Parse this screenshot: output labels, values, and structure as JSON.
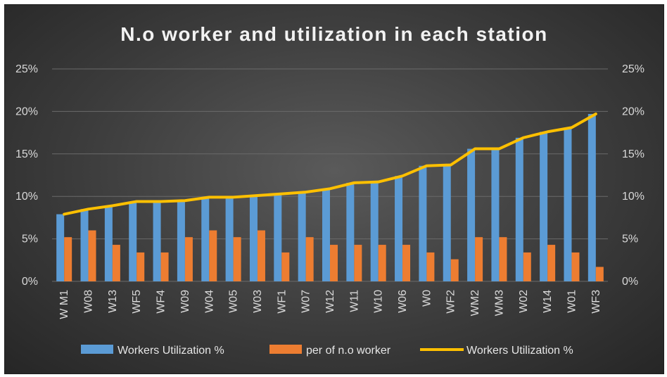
{
  "chart_data": {
    "type": "bar",
    "title": "N.o worker and utilization in each station",
    "categories": [
      "W M1",
      "W08",
      "W13",
      "WF5",
      "WF4",
      "W09",
      "W04",
      "W05",
      "W03",
      "WF1",
      "W07",
      "W12",
      "W11",
      "W10",
      "W06",
      "W0",
      "WF2",
      "WM2",
      "WM3",
      "W02",
      "W14",
      "W01",
      "WF3"
    ],
    "series": [
      {
        "name": "Workers Utilization %",
        "kind": "bar",
        "axis": "left",
        "color": "#5b9bd5",
        "values": [
          7.9,
          8.5,
          8.9,
          9.4,
          9.4,
          9.5,
          9.9,
          9.9,
          10.1,
          10.3,
          10.5,
          10.9,
          11.6,
          11.7,
          12.4,
          13.6,
          13.7,
          15.6,
          15.6,
          16.9,
          17.6,
          18.1,
          19.7
        ]
      },
      {
        "name": "per of n.o worker",
        "kind": "bar",
        "axis": "left",
        "color": "#ed7d31",
        "values": [
          5.2,
          6.0,
          4.3,
          3.4,
          3.4,
          5.2,
          6.0,
          5.2,
          6.0,
          3.4,
          5.2,
          4.3,
          4.3,
          4.3,
          4.3,
          3.4,
          2.6,
          5.2,
          5.2,
          3.4,
          4.3,
          3.4,
          1.7
        ]
      },
      {
        "name": "Workers Utilization %",
        "kind": "line",
        "axis": "right",
        "color": "#ffc000",
        "values": [
          7.9,
          8.5,
          8.9,
          9.4,
          9.4,
          9.5,
          9.9,
          9.9,
          10.1,
          10.3,
          10.5,
          10.9,
          11.6,
          11.7,
          12.4,
          13.6,
          13.7,
          15.6,
          15.6,
          16.9,
          17.6,
          18.1,
          19.7
        ]
      }
    ],
    "ylim": [
      0,
      25
    ],
    "y_ticks": [
      "0%",
      "5%",
      "10%",
      "15%",
      "20%",
      "25%"
    ],
    "y2_ticks": [
      "0%",
      "5%",
      "10%",
      "15%",
      "20%",
      "25%"
    ],
    "grid": true,
    "legend_position": "bottom"
  }
}
